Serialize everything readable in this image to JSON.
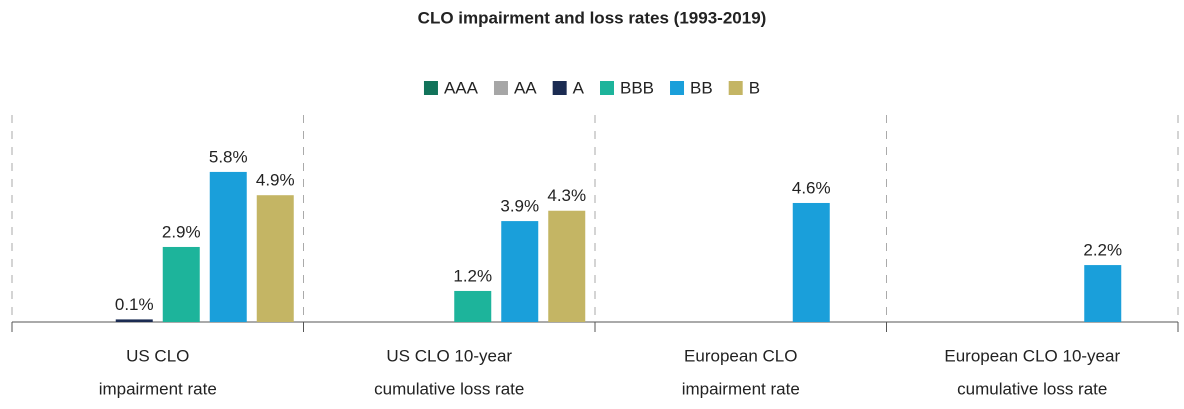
{
  "chart_data": {
    "type": "bar",
    "title": "CLO impairment and loss rates (1993-2019)",
    "categories": [
      [
        "US CLO",
        "impairment rate"
      ],
      [
        "US CLO 10-year",
        "cumulative loss rate"
      ],
      [
        "European CLO",
        "impairment rate"
      ],
      [
        "European CLO 10-year",
        "cumulative loss rate"
      ]
    ],
    "series": [
      {
        "name": "AAA",
        "color": "#12735a",
        "values": [
          null,
          null,
          null,
          null
        ],
        "value_labels": [
          null,
          null,
          null,
          null
        ]
      },
      {
        "name": "AA",
        "color": "#a6a6a6",
        "values": [
          null,
          null,
          null,
          null
        ],
        "value_labels": [
          null,
          null,
          null,
          null
        ]
      },
      {
        "name": "A",
        "color": "#1b2b52",
        "values": [
          0.1,
          null,
          null,
          null
        ],
        "value_labels": [
          "0.1%",
          null,
          null,
          null
        ]
      },
      {
        "name": "BBB",
        "color": "#1db49b",
        "values": [
          2.9,
          1.2,
          null,
          null
        ],
        "value_labels": [
          "2.9%",
          "1.2%",
          null,
          null
        ]
      },
      {
        "name": "BB",
        "color": "#1a9fda",
        "values": [
          5.8,
          3.9,
          4.6,
          2.2
        ],
        "value_labels": [
          "5.8%",
          "3.9%",
          "4.6%",
          "2.2%"
        ]
      },
      {
        "name": "B",
        "color": "#c4b564",
        "values": [
          4.9,
          4.3,
          null,
          null
        ],
        "value_labels": [
          "4.9%",
          "4.3%",
          null,
          null
        ]
      }
    ],
    "ylim": [
      0,
      8
    ],
    "legend": "top"
  }
}
